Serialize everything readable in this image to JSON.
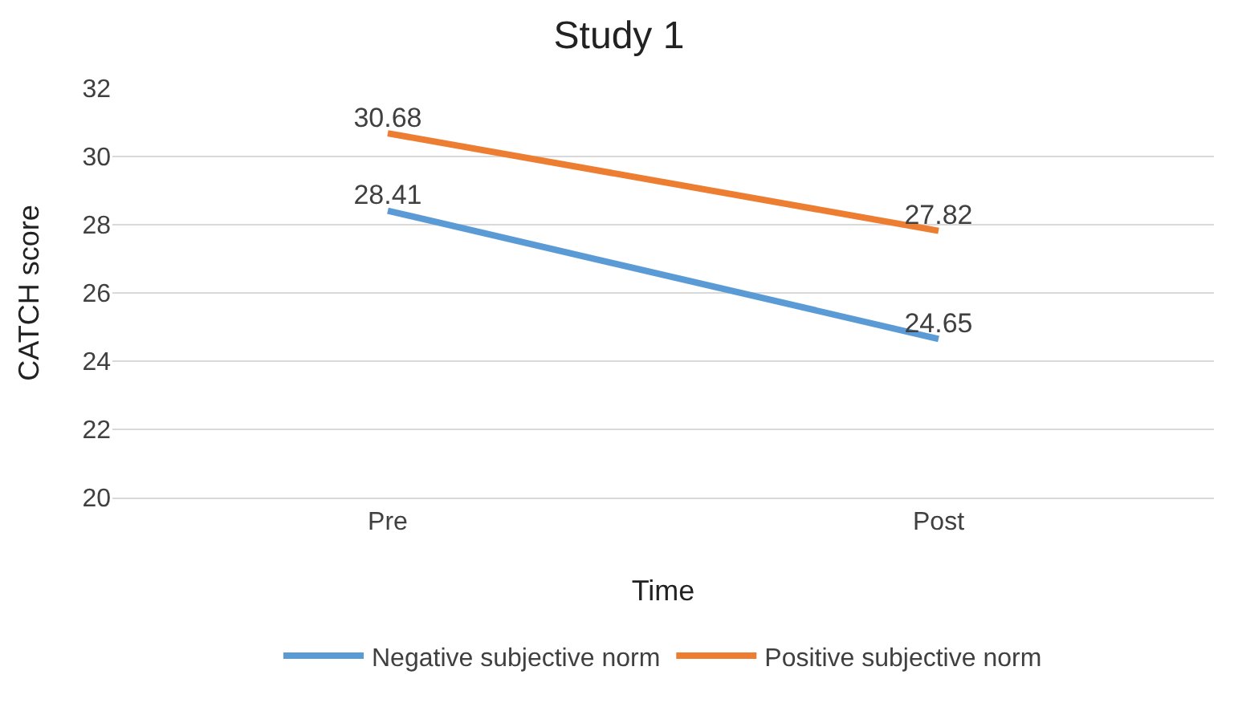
{
  "chart_data": {
    "type": "line",
    "title": "Study 1",
    "xlabel": "Time",
    "ylabel": "CATCH score",
    "categories": [
      "Pre",
      "Post"
    ],
    "series": [
      {
        "name": "Negative subjective norm",
        "color": "#5b9bd5",
        "values": [
          28.41,
          24.65
        ]
      },
      {
        "name": "Positive subjective norm",
        "color": "#ed7d31",
        "values": [
          30.68,
          27.82
        ]
      }
    ],
    "ylim": [
      20,
      32
    ],
    "yticks": [
      20,
      22,
      24,
      26,
      28,
      30,
      32
    ],
    "grid": "y",
    "legend": "bottom",
    "data_labels": true,
    "marker": "none",
    "line_style": "solid"
  }
}
